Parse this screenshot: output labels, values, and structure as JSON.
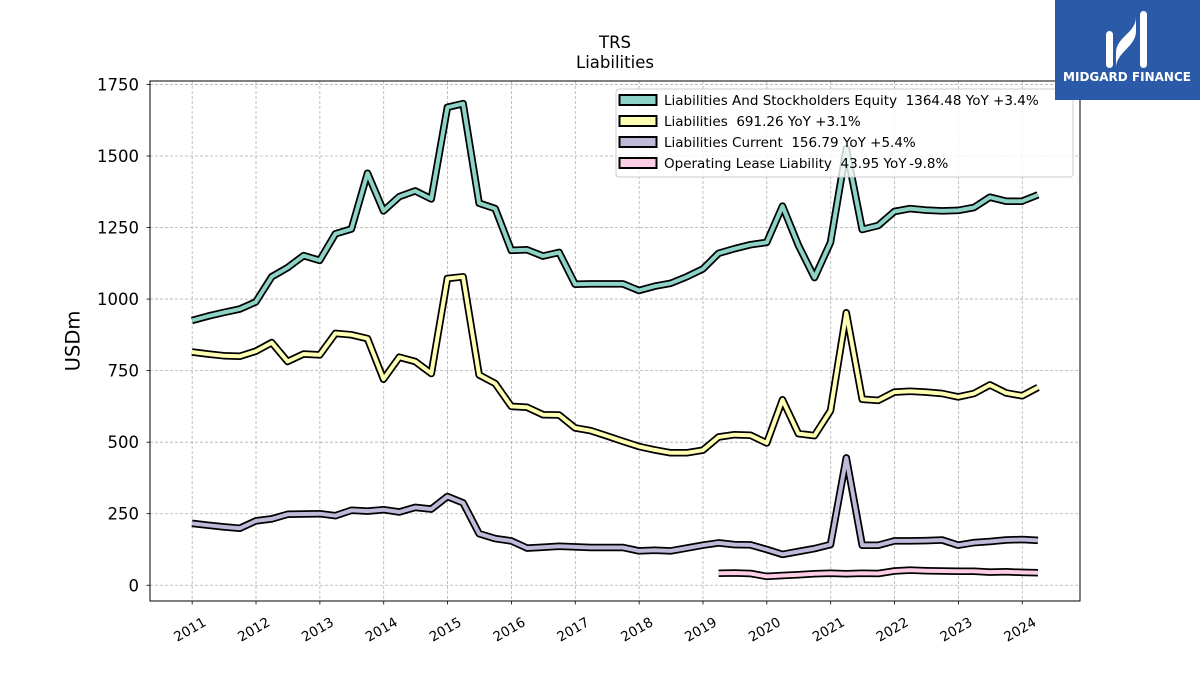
{
  "brand": {
    "name": "MIDGARD FINANCE",
    "background": "#2b5aa8",
    "icon": "midgard-logo-icon"
  },
  "chart_data": {
    "type": "line",
    "title": "TRS",
    "subtitle": "Liabilities",
    "ylabel": "USDm",
    "x_type": "date",
    "xlim": [
      "2010-05-05",
      "2024-11-27"
    ],
    "ylim": [
      -55,
      1762
    ],
    "xticks": [
      "2011",
      "2012",
      "2013",
      "2014",
      "2015",
      "2016",
      "2017",
      "2018",
      "2019",
      "2020",
      "2021",
      "2022",
      "2023",
      "2024"
    ],
    "yticks": [
      0,
      250,
      500,
      750,
      1000,
      1250,
      1500,
      1750
    ],
    "grid": true,
    "legend": {
      "position": "top-right",
      "yoy_label": "YoY"
    },
    "x": [
      "2010-12-31",
      "2011-03-31",
      "2011-06-30",
      "2011-09-30",
      "2011-12-31",
      "2012-03-31",
      "2012-06-30",
      "2012-09-30",
      "2012-12-31",
      "2013-03-31",
      "2013-06-30",
      "2013-09-30",
      "2013-12-31",
      "2014-03-31",
      "2014-06-30",
      "2014-09-30",
      "2014-12-31",
      "2015-03-31",
      "2015-06-30",
      "2015-09-30",
      "2015-12-31",
      "2016-03-31",
      "2016-06-30",
      "2016-09-30",
      "2016-12-31",
      "2017-03-31",
      "2017-06-30",
      "2017-09-30",
      "2017-12-31",
      "2018-03-31",
      "2018-06-30",
      "2018-09-30",
      "2018-12-31",
      "2019-03-31",
      "2019-06-30",
      "2019-09-30",
      "2019-12-31",
      "2020-03-31",
      "2020-06-30",
      "2020-09-30",
      "2020-12-31",
      "2021-03-31",
      "2021-06-30",
      "2021-09-30",
      "2021-12-31",
      "2022-03-31",
      "2022-06-30",
      "2022-09-30",
      "2022-12-31",
      "2023-03-31",
      "2023-06-30",
      "2023-09-30",
      "2023-12-31",
      "2024-03-31"
    ],
    "series": [
      {
        "name": "Liabilities And Stockholders Equity",
        "latest": "1364.48",
        "yoy": "+3.4%",
        "color": "#8dd3c7",
        "values": [
          925,
          940,
          953,
          965,
          990,
          1078,
          1110,
          1152,
          1135,
          1228,
          1245,
          1440,
          1308,
          1358,
          1378,
          1350,
          1670,
          1683,
          1335,
          1316,
          1170,
          1172,
          1150,
          1163,
          1052,
          1053,
          1053,
          1053,
          1030,
          1045,
          1055,
          1078,
          1105,
          1160,
          1176,
          1190,
          1198,
          1325,
          1188,
          1075,
          1198,
          1525,
          1243,
          1257,
          1306,
          1316,
          1311,
          1308,
          1310,
          1320,
          1356,
          1342,
          1342,
          1364.48
        ]
      },
      {
        "name": "Liabilities",
        "latest": "691.26",
        "yoy": "+3.1%",
        "color": "#ffffb3",
        "values": [
          815,
          808,
          802,
          800,
          818,
          848,
          782,
          808,
          805,
          880,
          875,
          862,
          720,
          797,
          782,
          740,
          1072,
          1078,
          735,
          705,
          625,
          622,
          596,
          595,
          550,
          540,
          522,
          503,
          485,
          473,
          463,
          463,
          472,
          518,
          526,
          524,
          497,
          648,
          530,
          523,
          610,
          952,
          650,
          646,
          675,
          678,
          675,
          670,
          658,
          670,
          700,
          672,
          662,
          691.26
        ]
      },
      {
        "name": "Liabilities Current",
        "latest": "156.79",
        "yoy": "+5.4%",
        "color": "#bebada",
        "values": [
          216,
          210,
          204,
          199,
          225,
          232,
          248,
          249,
          250,
          243,
          262,
          259,
          264,
          256,
          272,
          266,
          310,
          288,
          180,
          163,
          155,
          130,
          133,
          136,
          134,
          132,
          132,
          132,
          120,
          122,
          120,
          130,
          140,
          148,
          142,
          141,
          125,
          108,
          118,
          128,
          142,
          445,
          140,
          140,
          155,
          155,
          156,
          158,
          140,
          149,
          153,
          158,
          160,
          156.79
        ]
      },
      {
        "name": "Operating Lease Liability",
        "latest": "43.95",
        "yoy": "-9.8%",
        "color": "#fccde5",
        "values": [
          null,
          null,
          null,
          null,
          null,
          null,
          null,
          null,
          null,
          null,
          null,
          null,
          null,
          null,
          null,
          null,
          null,
          null,
          null,
          null,
          null,
          null,
          null,
          null,
          null,
          null,
          null,
          null,
          null,
          null,
          null,
          null,
          null,
          42,
          43,
          41,
          31,
          34,
          37,
          40,
          42,
          40,
          42,
          41,
          50,
          53,
          51,
          50,
          49,
          49,
          46,
          47,
          45,
          43.95
        ]
      }
    ]
  }
}
